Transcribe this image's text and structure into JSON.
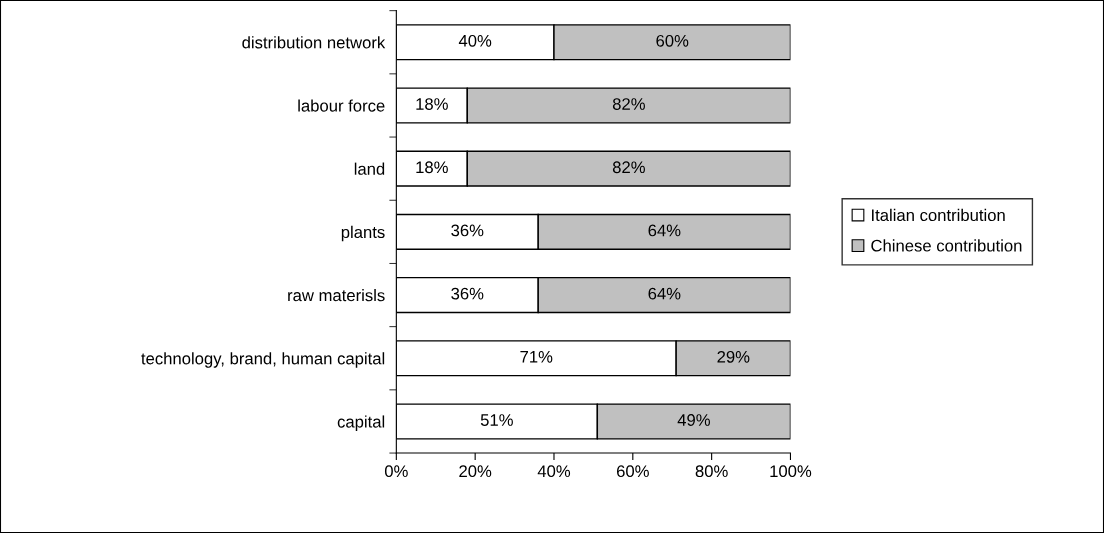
{
  "chart_data": {
    "type": "bar",
    "orientation": "horizontal",
    "stacked": true,
    "categories": [
      "distribution network",
      "labour force",
      "land",
      "plants",
      "raw materisls",
      "technology, brand, human capital",
      "capital"
    ],
    "series": [
      {
        "name": "Italian contribution",
        "color": "#ffffff",
        "values": [
          40,
          18,
          18,
          36,
          36,
          71,
          51
        ],
        "value_labels": [
          "40%",
          "18%",
          "18%",
          "36%",
          "36%",
          "71%",
          "51%"
        ]
      },
      {
        "name": "Chinese contribution",
        "color": "#c0c0c0",
        "values": [
          60,
          82,
          82,
          64,
          64,
          29,
          49
        ],
        "value_labels": [
          "60%",
          "82%",
          "82%",
          "64%",
          "64%",
          "29%",
          "49%"
        ]
      }
    ],
    "xlim": [
      0,
      100
    ],
    "xticks": [
      {
        "value": 0,
        "label": "0%"
      },
      {
        "value": 20,
        "label": "20%"
      },
      {
        "value": 40,
        "label": "40%"
      },
      {
        "value": 60,
        "label": "60%"
      },
      {
        "value": 80,
        "label": "80%"
      },
      {
        "value": 100,
        "label": "100%"
      }
    ],
    "grid": false,
    "legend": "right"
  }
}
